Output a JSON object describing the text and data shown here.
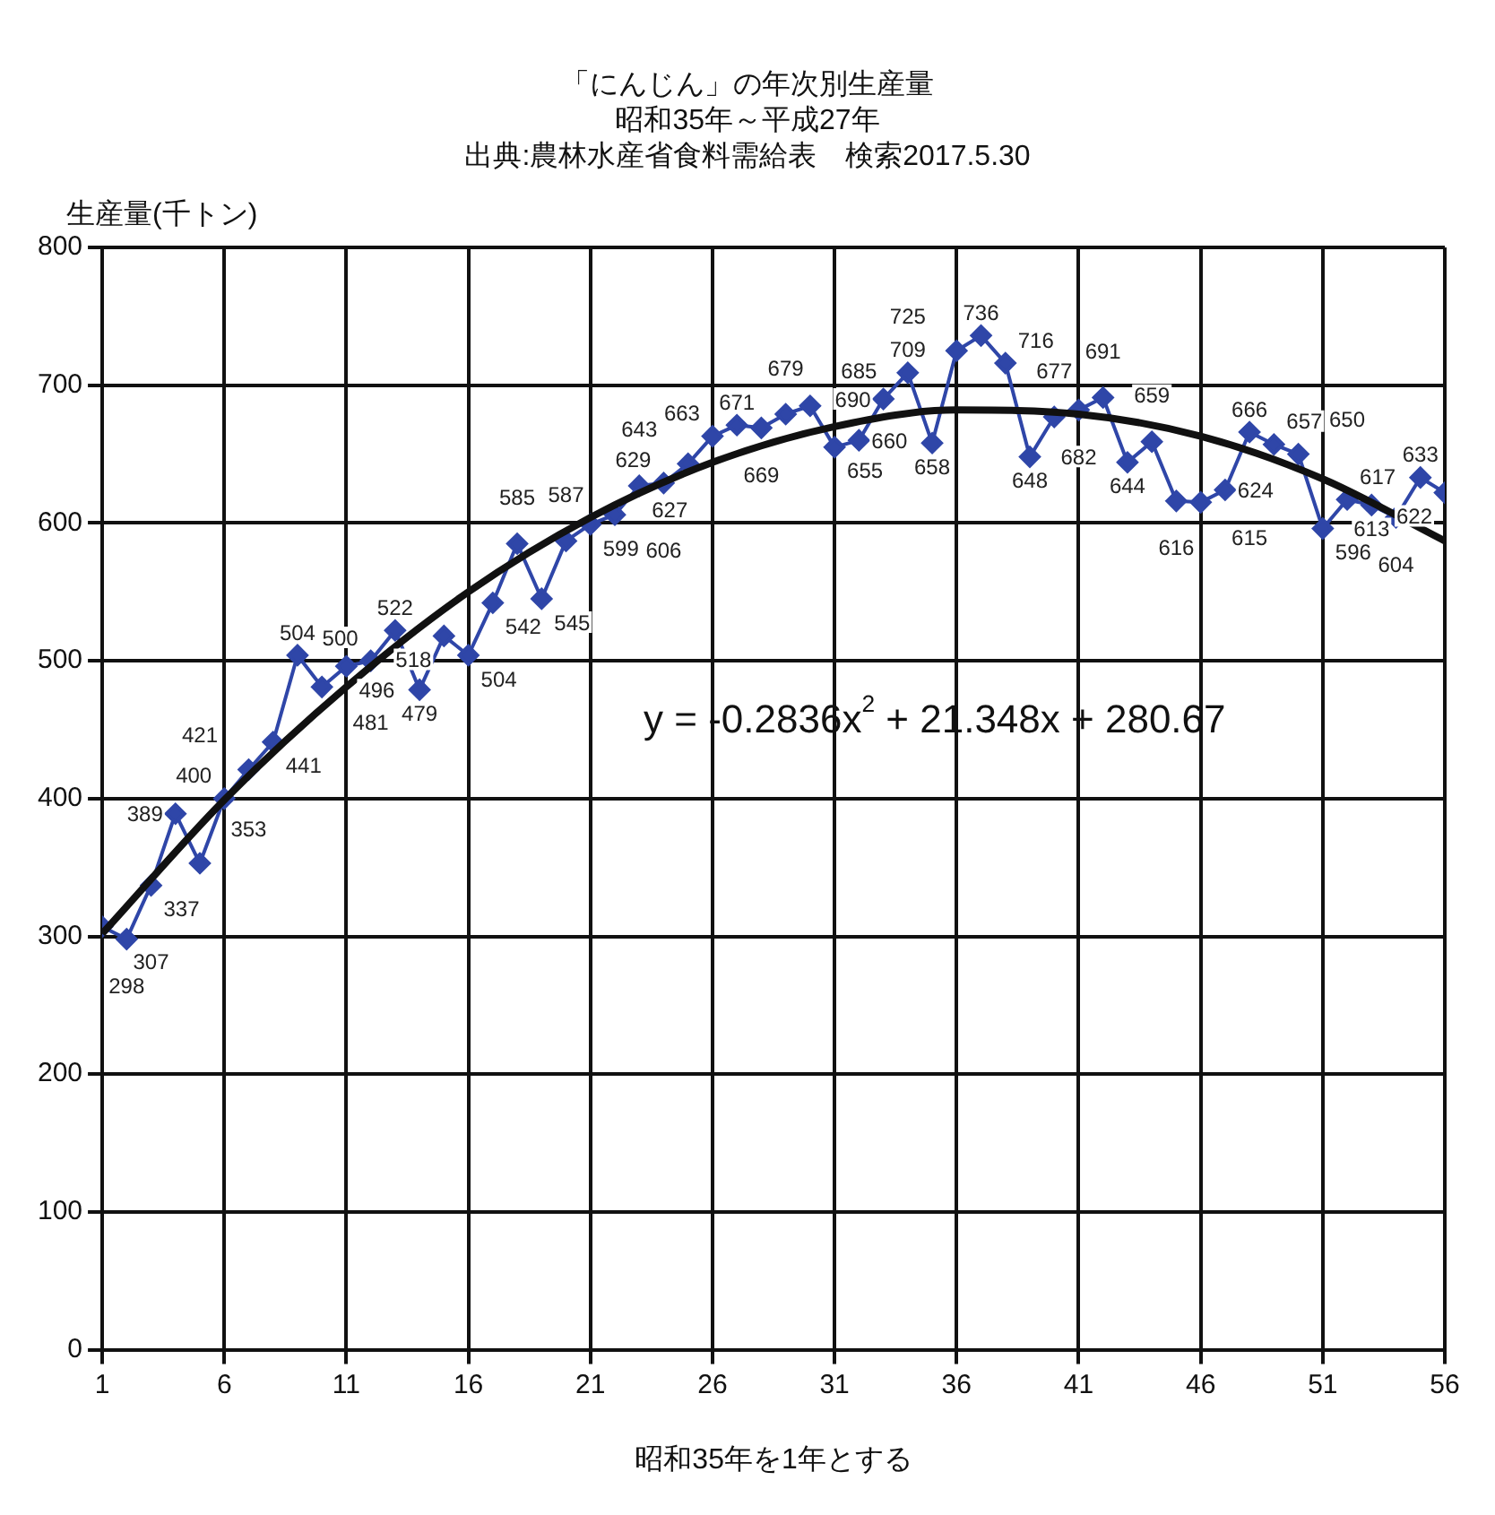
{
  "chart_data": {
    "type": "line",
    "title": "「にんじん」の年次別生産量",
    "subtitle": "昭和35年～平成27年",
    "annotations": [
      "出典:農林水産省食料需給表　検索2017.5.30",
      "y = -0.2836x$^{2}$ + 21.348x + 280.67"
    ],
    "ylabel": "生産量(千トン)",
    "xlabel": "昭和35年を1年とする",
    "x": [
      1,
      2,
      3,
      4,
      5,
      6,
      7,
      8,
      9,
      10,
      11,
      12,
      13,
      14,
      15,
      16,
      17,
      18,
      19,
      20,
      21,
      22,
      23,
      24,
      25,
      26,
      27,
      28,
      29,
      30,
      31,
      32,
      33,
      34,
      35,
      36,
      37,
      38,
      39,
      40,
      41,
      42,
      43,
      44,
      45,
      46,
      47,
      48,
      49,
      50,
      51,
      52,
      53,
      54,
      55,
      56
    ],
    "series": [
      {
        "color": "#2f46a8",
        "marker": "diamond",
        "values": [
          307,
          298,
          337,
          389,
          353,
          400,
          421,
          441,
          504,
          481,
          496,
          500,
          522,
          479,
          518,
          504,
          542,
          585,
          545,
          587,
          599,
          606,
          627,
          629,
          643,
          663,
          671,
          669,
          679,
          685,
          655,
          660,
          690,
          709,
          658,
          725,
          736,
          716,
          648,
          677,
          682,
          691,
          644,
          659,
          616,
          615,
          624,
          666,
          657,
          650,
          596,
          617,
          613,
          604,
          633,
          622
        ],
        "value_labels": [
          "307",
          "298",
          "337",
          "389",
          "353",
          "400",
          "421",
          "441",
          "504",
          "481",
          "496",
          "500",
          "522",
          "479",
          "518",
          "504",
          "542",
          "585",
          "545",
          "587",
          "599",
          "606",
          "627",
          "629",
          "643",
          "663",
          "671",
          "669",
          "679",
          "685",
          "655",
          "660",
          "690",
          "709",
          "658",
          "725",
          "736",
          "716",
          "648",
          "677",
          "682",
          "691",
          "644",
          "659",
          "616",
          "615",
          "624",
          "666",
          "657",
          "650",
          "596",
          "617",
          "613",
          "604",
          "633",
          "622"
        ]
      },
      {
        "color": "#111111",
        "marker": "none",
        "x": [
          1,
          6,
          11,
          16,
          21,
          26,
          31,
          36,
          41,
          46,
          51,
          56
        ],
        "values": [
          302,
          399,
          481,
          550,
          604,
          644,
          670,
          682,
          679,
          663,
          632,
          587
        ]
      }
    ],
    "xlim": [
      1,
      56
    ],
    "xticks": [
      1,
      6,
      11,
      16,
      21,
      26,
      31,
      36,
      41,
      46,
      51,
      56
    ],
    "ylim": [
      0,
      800
    ],
    "yticks": [
      0,
      100,
      200,
      300,
      400,
      500,
      600,
      700,
      800
    ],
    "grid": true,
    "legend": false
  }
}
